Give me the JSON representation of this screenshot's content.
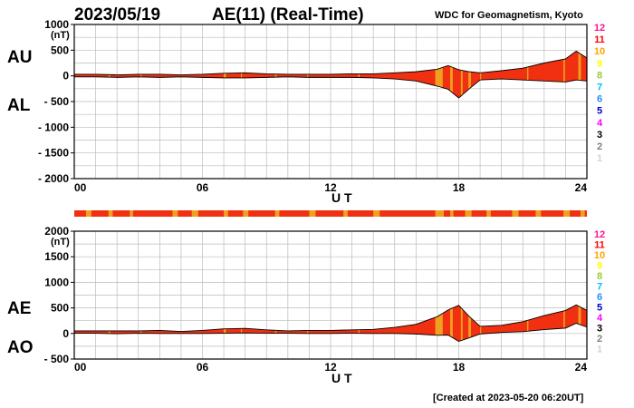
{
  "header": {
    "date": "2023/05/19",
    "title": "AE(11) (Real-Time)",
    "source": "WDC for Geomagnetism, Kyoto"
  },
  "footer": {
    "created": "[Created at 2023-05-20 06:20UT]"
  },
  "colors": {
    "fill_main": "#f03010",
    "fill_alt": "#f0a020",
    "outline": "#000000",
    "grid": "#bbbbbb"
  },
  "legend": {
    "counts": [
      "12",
      "11",
      "10",
      "9",
      "8",
      "7",
      "6",
      "5",
      "4",
      "3",
      "2",
      "1"
    ],
    "colors": [
      "#ff1493",
      "#ff0000",
      "#ffa500",
      "#ffff00",
      "#9acd32",
      "#00bfff",
      "#1e90ff",
      "#0000cd",
      "#ff00ff",
      "#000000",
      "#808080",
      "#d3d3d3"
    ]
  },
  "chart_data": [
    {
      "type": "area",
      "name": "AU/AL",
      "series_labels": [
        "AU",
        "AL"
      ],
      "y_unit": "(nT)",
      "ylim": [
        -2000,
        1000
      ],
      "yticks": [
        1000,
        500,
        0,
        -500,
        -1000,
        -1500,
        -2000
      ],
      "ytick_labels": [
        "1000",
        "500",
        "0",
        "- 500",
        "- 1000",
        "- 1500",
        "- 2000"
      ],
      "xlim": [
        0,
        24
      ],
      "xticks": [
        0,
        6,
        12,
        18,
        24
      ],
      "xtick_labels": [
        "00",
        "06",
        "12",
        "18",
        "24"
      ],
      "xlabel": "U T",
      "x_hours": [
        0,
        1,
        2,
        3,
        4,
        5,
        6,
        7,
        8,
        9,
        10,
        11,
        12,
        13,
        14,
        15,
        16,
        17,
        17.5,
        18,
        18.5,
        19,
        20,
        21,
        22,
        23,
        23.5,
        24
      ],
      "AU": [
        30,
        30,
        20,
        30,
        30,
        20,
        30,
        50,
        60,
        40,
        30,
        30,
        30,
        40,
        40,
        60,
        80,
        130,
        200,
        120,
        80,
        60,
        100,
        150,
        250,
        330,
        480,
        350
      ],
      "AL": [
        -20,
        -20,
        -30,
        -20,
        -30,
        -20,
        -30,
        -40,
        -40,
        -30,
        -20,
        -30,
        -30,
        -30,
        -40,
        -60,
        -100,
        -200,
        -260,
        -430,
        -250,
        -80,
        -60,
        -80,
        -100,
        -120,
        -80,
        -100
      ]
    },
    {
      "type": "area",
      "name": "AE/AO",
      "series_labels": [
        "AE",
        "AO"
      ],
      "y_unit": "(nT)",
      "ylim": [
        -500,
        2000
      ],
      "yticks": [
        2000,
        1500,
        1000,
        500,
        0,
        -500
      ],
      "ytick_labels": [
        "2000",
        "1500",
        "1000",
        "500",
        "0",
        "- 500"
      ],
      "xlim": [
        0,
        24
      ],
      "xticks": [
        0,
        6,
        12,
        18,
        24
      ],
      "xtick_labels": [
        "00",
        "06",
        "12",
        "18",
        "24"
      ],
      "xlabel": "U T",
      "x_hours": [
        0,
        1,
        2,
        3,
        4,
        5,
        6,
        7,
        8,
        9,
        10,
        11,
        12,
        13,
        14,
        15,
        16,
        17,
        17.5,
        18,
        18.5,
        19,
        20,
        21,
        22,
        23,
        23.5,
        24
      ],
      "AE": [
        50,
        50,
        50,
        50,
        60,
        40,
        60,
        90,
        100,
        70,
        50,
        60,
        60,
        70,
        80,
        120,
        180,
        330,
        460,
        550,
        330,
        140,
        160,
        230,
        350,
        450,
        560,
        450
      ],
      "AO": [
        5,
        5,
        -5,
        5,
        0,
        0,
        0,
        5,
        10,
        5,
        5,
        0,
        0,
        5,
        0,
        0,
        -10,
        -35,
        -30,
        -155,
        -85,
        -10,
        20,
        35,
        75,
        105,
        200,
        125
      ]
    }
  ]
}
